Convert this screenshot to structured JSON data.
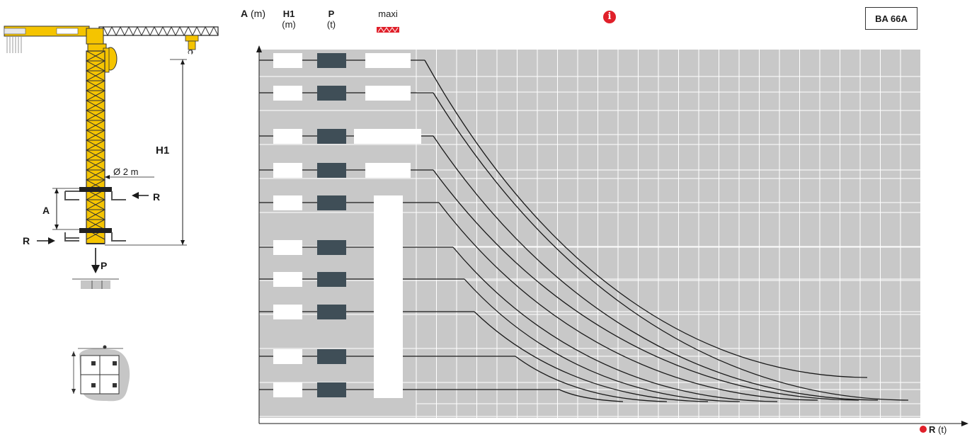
{
  "header": {
    "a_axis": {
      "label": "A",
      "unit": "(m)"
    },
    "h1": {
      "label": "H1",
      "unit": "(m)"
    },
    "p": {
      "label": "P",
      "unit": "(t)"
    },
    "maxi": {
      "label": "maxi"
    },
    "model": "BA 66A",
    "info_icon": "info-icon"
  },
  "r_axis": {
    "label": "R",
    "unit": "(t)"
  },
  "crane": {
    "h1_label": "H1",
    "diameter_label": "Ø 2 m",
    "a_label": "A",
    "r_label_right": "R",
    "r_label_left": "R",
    "p_label": "P"
  },
  "colors": {
    "grid_bg": "#c8c8c8",
    "dark_cell": "#3f4e57",
    "accent_red": "#e0202a",
    "crane_yellow": "#f5c400"
  },
  "chart_rows": 10
}
